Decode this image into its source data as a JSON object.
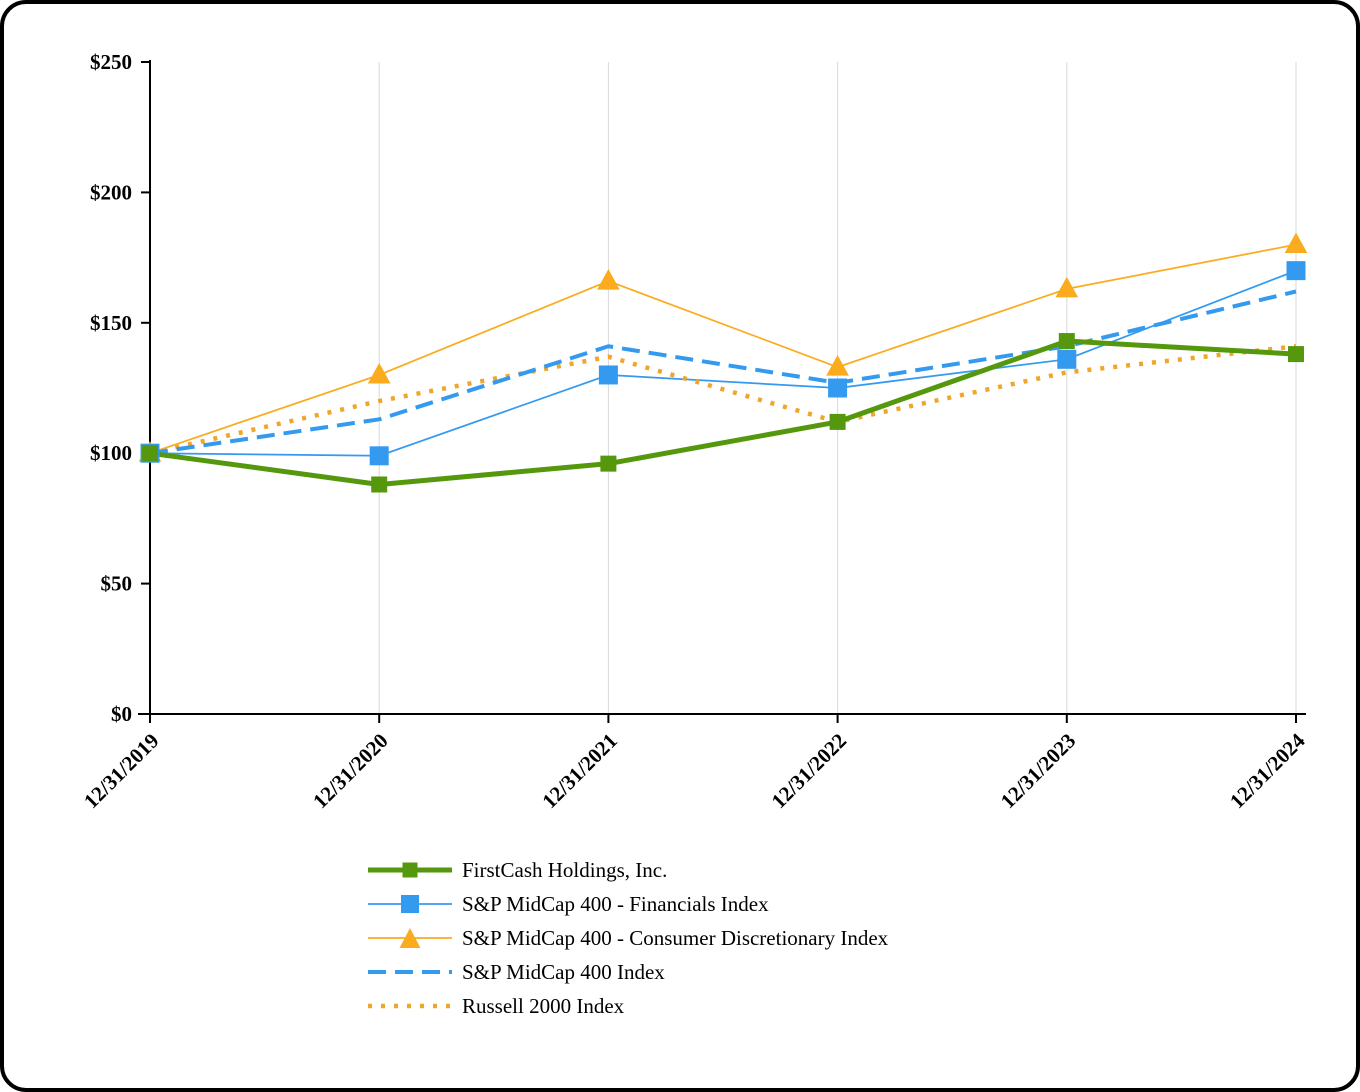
{
  "chart_data": {
    "type": "line",
    "title": "",
    "xlabel": "",
    "ylabel": "",
    "x_labels": [
      "12/31/2019",
      "12/31/2020",
      "12/31/2021",
      "12/31/2022",
      "12/31/2023",
      "12/31/2024"
    ],
    "y_ticks": [
      "$0",
      "$50",
      "$100",
      "$150",
      "$200",
      "$250"
    ],
    "ylim": [
      0,
      250
    ],
    "y_tick_step": 50,
    "grid": "vertical-only",
    "legend_position": "bottom-left",
    "gridline_color": "#d9d9d9",
    "axis_color": "#000000",
    "series": [
      {
        "name": "FirstCash Holdings, Inc.",
        "values": [
          100,
          88,
          96,
          112,
          143,
          138
        ],
        "color": "#55980E",
        "line": "solid-thick",
        "marker": "square"
      },
      {
        "name": "S&P MidCap 400 - Financials Index",
        "values": [
          100,
          99,
          130,
          125,
          136,
          170
        ],
        "color": "#349AF0",
        "line": "solid-thin",
        "marker": "square"
      },
      {
        "name": "S&P MidCap 400 - Consumer Discretionary Index",
        "values": [
          100,
          130,
          166,
          133,
          163,
          180
        ],
        "color": "#FAAB1E",
        "line": "solid-thin",
        "marker": "triangle"
      },
      {
        "name": "S&P MidCap 400 Index",
        "values": [
          100,
          113,
          141,
          127,
          141,
          162
        ],
        "color": "#349AF0",
        "line": "dashed",
        "marker": "none"
      },
      {
        "name": "Russell 2000 Index",
        "values": [
          100,
          120,
          137,
          112,
          131,
          141
        ],
        "color": "#F0A62A",
        "line": "dotted",
        "marker": "none"
      }
    ]
  }
}
